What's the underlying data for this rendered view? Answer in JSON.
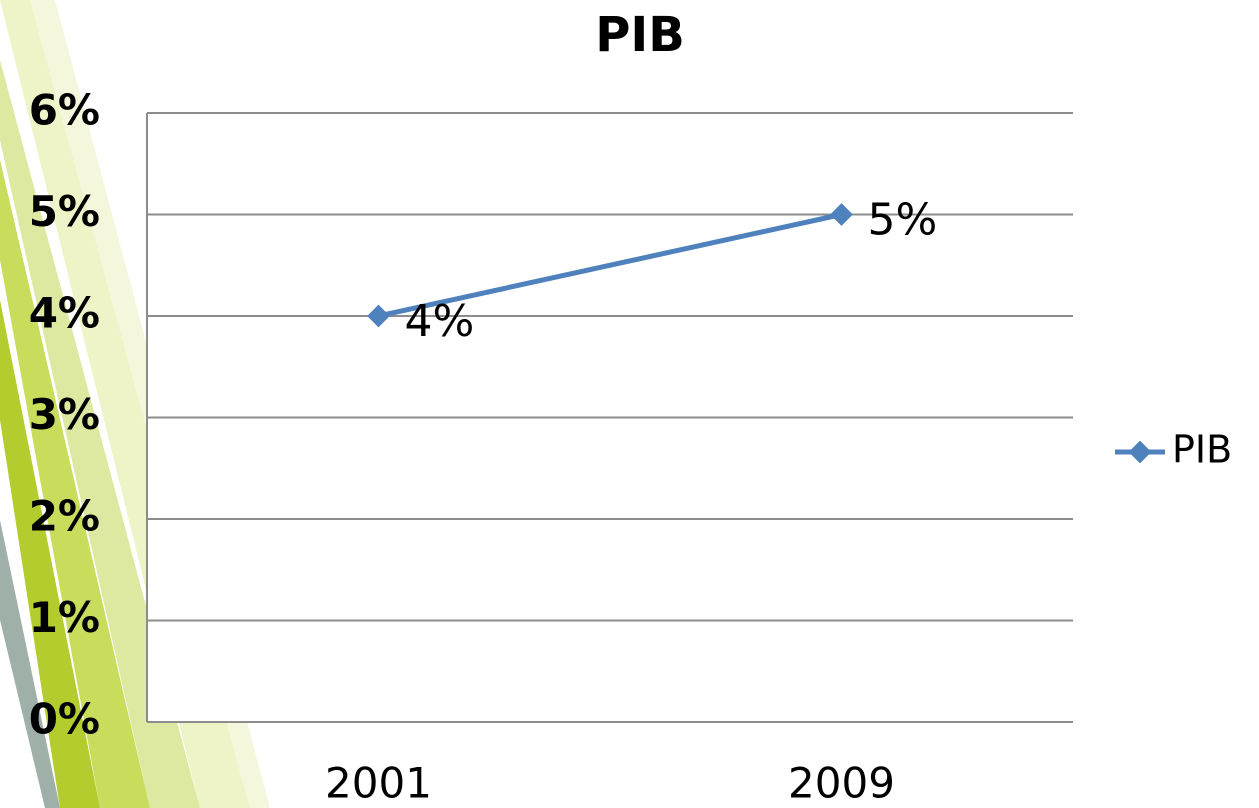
{
  "chart_data": {
    "type": "line",
    "title": "PIB",
    "categories": [
      "2001",
      "2009"
    ],
    "series": [
      {
        "name": "PIB",
        "color": "#4f81bd",
        "values": [
          4,
          5
        ],
        "value_labels": [
          "4%",
          "5%"
        ]
      }
    ],
    "ylim": [
      0,
      6
    ],
    "yticks": [
      {
        "value": 0,
        "label": "0%"
      },
      {
        "value": 1,
        "label": "1%"
      },
      {
        "value": 2,
        "label": "2%"
      },
      {
        "value": 3,
        "label": "3%"
      },
      {
        "value": 4,
        "label": "4%"
      },
      {
        "value": 5,
        "label": "5%"
      },
      {
        "value": 6,
        "label": "6%"
      }
    ],
    "grid": true,
    "legend": "right"
  }
}
